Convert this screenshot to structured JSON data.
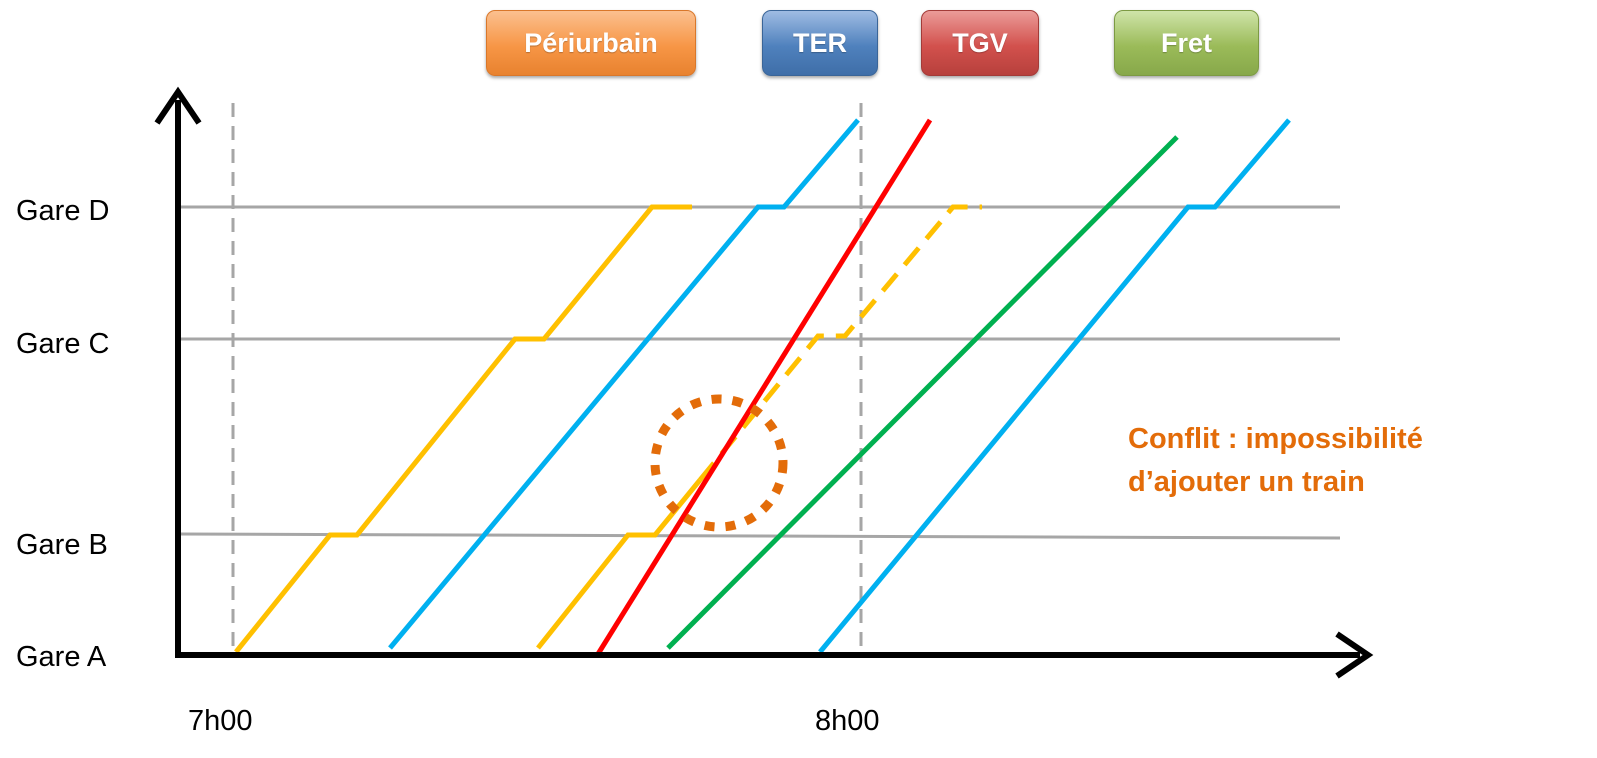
{
  "legend": [
    {
      "id": "periurbain",
      "label": "Périurbain",
      "color": "#f79646"
    },
    {
      "id": "ter",
      "label": "TER",
      "color": "#4f81bd"
    },
    {
      "id": "tgv",
      "label": "TGV",
      "color": "#c0504d"
    },
    {
      "id": "fret",
      "label": "Fret",
      "color": "#9bbb59"
    }
  ],
  "stations": [
    "Gare A",
    "Gare B",
    "Gare C",
    "Gare D"
  ],
  "times": [
    "7h00",
    "8h00"
  ],
  "annotation": {
    "line1": "Conflit : impossibilité",
    "line2": "d’ajouter un train",
    "color": "#e36c09"
  },
  "colors": {
    "periurbain_line": "#ffc000",
    "ter_line": "#00b0f0",
    "tgv_line": "#ff0000",
    "fret_line": "#00b050",
    "grid": "#a6a6a6",
    "conflict_circle": "#e36c09"
  }
}
